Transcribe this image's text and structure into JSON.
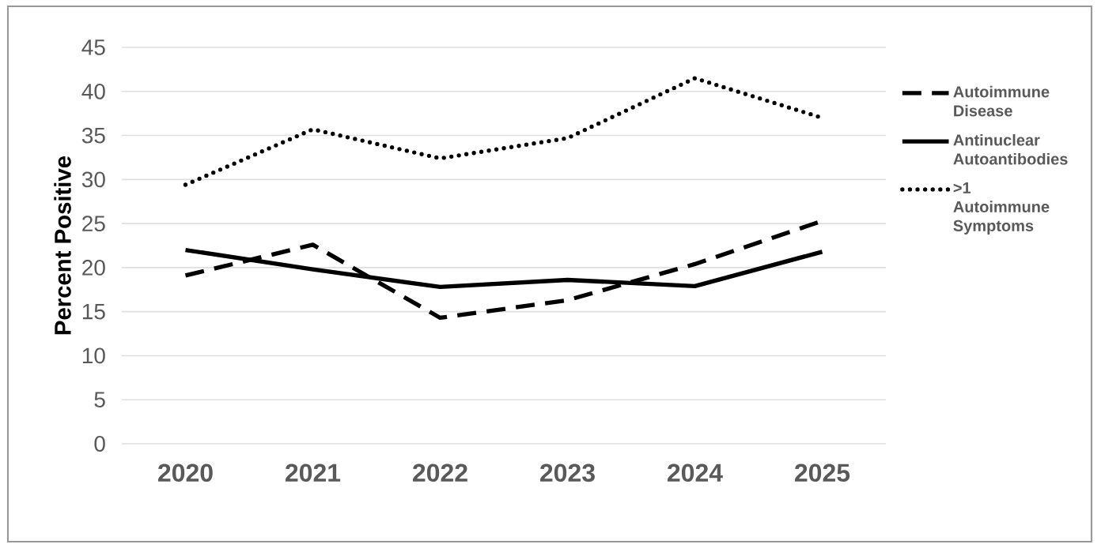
{
  "chart_data": {
    "type": "line",
    "ylabel": "Percent Positive",
    "categories": [
      "2020",
      "2021",
      "2022",
      "2023",
      "2024",
      "2025"
    ],
    "series": [
      {
        "name": "Autoimmune Disease",
        "color": "#000000",
        "line_style": "dashed",
        "values": [
          19.1,
          22.6,
          14.3,
          16.3,
          20.4,
          25.3
        ]
      },
      {
        "name": "Antinuclear Autoantibodies",
        "color": "#000000",
        "line_style": "solid",
        "values": [
          22.0,
          19.8,
          17.8,
          18.6,
          17.9,
          21.8
        ]
      },
      {
        "name": ">1 Autoimmune Symptoms",
        "color": "#000000",
        "line_style": "dotted",
        "values": [
          29.4,
          35.7,
          32.4,
          34.7,
          41.5,
          37.0
        ]
      }
    ],
    "ylim": [
      0,
      45
    ],
    "yticks": [
      0,
      5,
      10,
      15,
      20,
      25,
      30,
      35,
      40,
      45
    ],
    "grid": "y",
    "legend": "right"
  }
}
